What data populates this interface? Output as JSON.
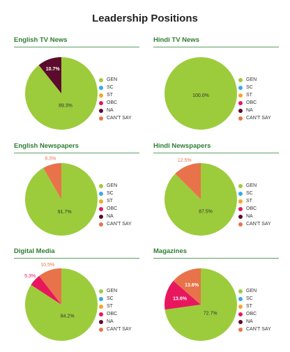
{
  "title": "Leadership Positions",
  "legend": [
    {
      "label": "GEN",
      "color": "#9ccc3c"
    },
    {
      "label": "SC",
      "color": "#3aaae0"
    },
    {
      "label": "ST",
      "color": "#f5a623"
    },
    {
      "label": "OBC",
      "color": "#e8175d"
    },
    {
      "label": "NA",
      "color": "#5c0b2c"
    },
    {
      "label": "CAN'T SAY",
      "color": "#e8734a"
    }
  ],
  "chart_data": [
    {
      "type": "pie",
      "title": "English TV News",
      "slices": [
        {
          "category": "GEN",
          "value": 89.3,
          "label": "89.3%"
        },
        {
          "category": "NA",
          "value": 10.7,
          "label": "10.7%"
        }
      ]
    },
    {
      "type": "pie",
      "title": "Hindi TV News",
      "slices": [
        {
          "category": "GEN",
          "value": 100.0,
          "label": "100.0%"
        }
      ]
    },
    {
      "type": "pie",
      "title": "English Newspapers",
      "slices": [
        {
          "category": "GEN",
          "value": 91.7,
          "label": "91.7%"
        },
        {
          "category": "CAN'T SAY",
          "value": 8.3,
          "label": "8.3%"
        }
      ]
    },
    {
      "type": "pie",
      "title": "Hindi Newspapers",
      "slices": [
        {
          "category": "GEN",
          "value": 87.5,
          "label": "87.5%"
        },
        {
          "category": "CAN'T SAY",
          "value": 12.5,
          "label": "12.5%"
        }
      ]
    },
    {
      "type": "pie",
      "title": "Digital Media",
      "slices": [
        {
          "category": "GEN",
          "value": 84.2,
          "label": "84.2%"
        },
        {
          "category": "OBC",
          "value": 5.3,
          "label": "5.3%"
        },
        {
          "category": "CAN'T SAY",
          "value": 10.5,
          "label": "10.5%"
        }
      ]
    },
    {
      "type": "pie",
      "title": "Magazines",
      "slices": [
        {
          "category": "GEN",
          "value": 72.7,
          "label": "72.7%"
        },
        {
          "category": "OBC",
          "value": 13.6,
          "label": "13.6%"
        },
        {
          "category": "CAN'T SAY",
          "value": 13.6,
          "label": "13.6%"
        }
      ]
    }
  ]
}
